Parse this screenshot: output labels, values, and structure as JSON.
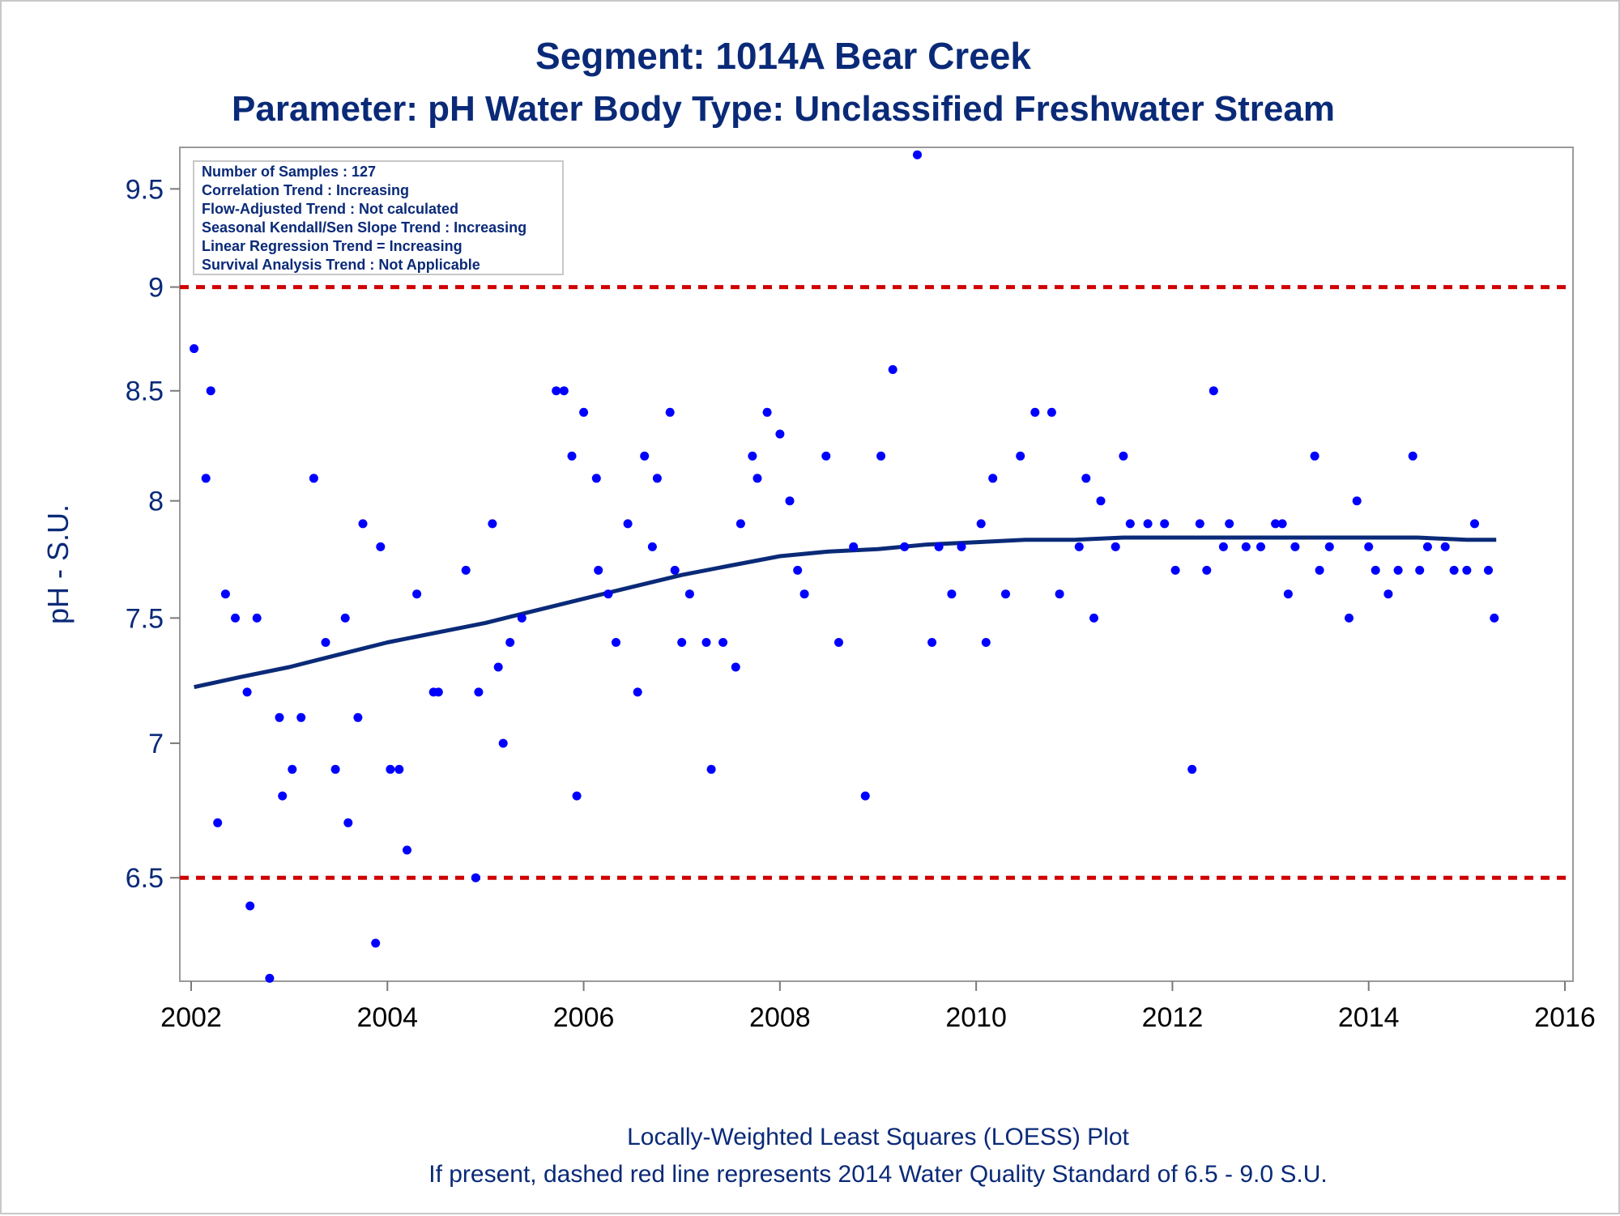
{
  "chart_data": {
    "type": "scatter",
    "title": "Segment: 1014A  Bear Creek",
    "subtitle": "Parameter: pH   Water Body Type: Unclassified Freshwater Stream",
    "ylabel": "pH - S.U.",
    "xlabel": "",
    "xlim": [
      2002,
      2016
    ],
    "ylim": [
      6.14,
      9.72
    ],
    "y_scale": "log",
    "grid": false,
    "x_ticks": [
      2002,
      2004,
      2006,
      2008,
      2010,
      2012,
      2014,
      2016
    ],
    "x_tick_labels": [
      "2002",
      "2004",
      "2006",
      "2008",
      "2010",
      "2012",
      "2014",
      "2016"
    ],
    "y_ticks": [
      6.5,
      7,
      7.5,
      8,
      8.5,
      9,
      9.5
    ],
    "y_tick_labels": [
      "6.5",
      "7",
      "7.5",
      "8",
      "8.5",
      "9",
      "9.5"
    ],
    "info_box": {
      "placement": "top-left",
      "lines": [
        "Number of Samples : 127",
        "Correlation Trend : Increasing",
        "Flow-Adjusted Trend : Not calculated",
        "Seasonal Kendall/Sen Slope Trend : Increasing",
        "Linear Regression Trend = Increasing",
        "Survival Analysis Trend : Not Applicable"
      ]
    },
    "standard_lines": [
      {
        "y": 6.5,
        "style": "dashed",
        "color": "#d00000"
      },
      {
        "y": 9.0,
        "style": "dashed",
        "color": "#d00000"
      }
    ],
    "colors": {
      "points": "#0000ff",
      "loess": "#0a2a78",
      "standard": "#d00000",
      "text": "#0a2a78"
    },
    "points": [
      [
        2002.03,
        8.7
      ],
      [
        2002.15,
        8.1
      ],
      [
        2002.2,
        8.5
      ],
      [
        2002.27,
        6.7
      ],
      [
        2002.35,
        7.6
      ],
      [
        2002.45,
        7.5
      ],
      [
        2002.57,
        7.2
      ],
      [
        2002.6,
        6.4
      ],
      [
        2002.67,
        7.5
      ],
      [
        2002.8,
        6.15
      ],
      [
        2002.9,
        7.1
      ],
      [
        2002.93,
        6.8
      ],
      [
        2003.03,
        6.9
      ],
      [
        2003.12,
        7.1
      ],
      [
        2003.25,
        8.1
      ],
      [
        2003.37,
        7.4
      ],
      [
        2003.47,
        6.9
      ],
      [
        2003.57,
        7.5
      ],
      [
        2003.6,
        6.7
      ],
      [
        2003.7,
        7.1
      ],
      [
        2003.75,
        7.9
      ],
      [
        2003.88,
        6.27
      ],
      [
        2003.93,
        7.8
      ],
      [
        2004.03,
        6.9
      ],
      [
        2004.12,
        6.9
      ],
      [
        2004.2,
        6.6
      ],
      [
        2004.3,
        7.6
      ],
      [
        2004.47,
        7.2
      ],
      [
        2004.52,
        7.2
      ],
      [
        2004.8,
        7.7
      ],
      [
        2004.9,
        6.5
      ],
      [
        2004.93,
        7.2
      ],
      [
        2005.07,
        7.9
      ],
      [
        2005.13,
        7.3
      ],
      [
        2005.18,
        7.0
      ],
      [
        2005.25,
        7.4
      ],
      [
        2005.37,
        7.5
      ],
      [
        2005.72,
        8.5
      ],
      [
        2005.8,
        8.5
      ],
      [
        2005.88,
        8.2
      ],
      [
        2005.93,
        6.8
      ],
      [
        2006.0,
        8.4
      ],
      [
        2006.13,
        8.1
      ],
      [
        2006.15,
        7.7
      ],
      [
        2006.25,
        7.6
      ],
      [
        2006.33,
        7.4
      ],
      [
        2006.45,
        7.9
      ],
      [
        2006.55,
        7.2
      ],
      [
        2006.62,
        8.2
      ],
      [
        2006.7,
        7.8
      ],
      [
        2006.75,
        8.1
      ],
      [
        2006.88,
        8.4
      ],
      [
        2006.93,
        7.7
      ],
      [
        2007.0,
        7.4
      ],
      [
        2007.08,
        7.6
      ],
      [
        2007.25,
        7.4
      ],
      [
        2007.3,
        6.9
      ],
      [
        2007.42,
        7.4
      ],
      [
        2007.55,
        7.3
      ],
      [
        2007.6,
        7.9
      ],
      [
        2007.72,
        8.2
      ],
      [
        2007.77,
        8.1
      ],
      [
        2007.87,
        8.4
      ],
      [
        2008.0,
        8.3
      ],
      [
        2008.1,
        8.0
      ],
      [
        2008.18,
        7.7
      ],
      [
        2008.25,
        7.6
      ],
      [
        2008.47,
        8.2
      ],
      [
        2008.6,
        7.4
      ],
      [
        2008.75,
        7.8
      ],
      [
        2008.87,
        6.8
      ],
      [
        2009.03,
        8.2
      ],
      [
        2009.15,
        8.6
      ],
      [
        2009.27,
        7.8
      ],
      [
        2009.4,
        9.68
      ],
      [
        2009.55,
        7.4
      ],
      [
        2009.62,
        7.8
      ],
      [
        2009.75,
        7.6
      ],
      [
        2009.85,
        7.8
      ],
      [
        2010.05,
        7.9
      ],
      [
        2010.1,
        7.4
      ],
      [
        2010.17,
        8.1
      ],
      [
        2010.3,
        7.6
      ],
      [
        2010.45,
        8.2
      ],
      [
        2010.6,
        8.4
      ],
      [
        2010.77,
        8.4
      ],
      [
        2010.85,
        7.6
      ],
      [
        2011.05,
        7.8
      ],
      [
        2011.12,
        8.1
      ],
      [
        2011.2,
        7.5
      ],
      [
        2011.27,
        8.0
      ],
      [
        2011.42,
        7.8
      ],
      [
        2011.5,
        8.2
      ],
      [
        2011.57,
        7.9
      ],
      [
        2011.75,
        7.9
      ],
      [
        2011.92,
        7.9
      ],
      [
        2012.03,
        7.7
      ],
      [
        2012.2,
        6.9
      ],
      [
        2012.28,
        7.9
      ],
      [
        2012.35,
        7.7
      ],
      [
        2012.42,
        8.5
      ],
      [
        2012.52,
        7.8
      ],
      [
        2012.58,
        7.9
      ],
      [
        2012.75,
        7.8
      ],
      [
        2012.9,
        7.8
      ],
      [
        2013.05,
        7.9
      ],
      [
        2013.12,
        7.9
      ],
      [
        2013.18,
        7.6
      ],
      [
        2013.25,
        7.8
      ],
      [
        2013.45,
        8.2
      ],
      [
        2013.5,
        7.7
      ],
      [
        2013.6,
        7.8
      ],
      [
        2013.8,
        7.5
      ],
      [
        2013.88,
        8.0
      ],
      [
        2014.0,
        7.8
      ],
      [
        2014.07,
        7.7
      ],
      [
        2014.2,
        7.6
      ],
      [
        2014.3,
        7.7
      ],
      [
        2014.45,
        8.2
      ],
      [
        2014.52,
        7.7
      ],
      [
        2014.6,
        7.8
      ],
      [
        2014.78,
        7.8
      ],
      [
        2014.87,
        7.7
      ],
      [
        2015.0,
        7.7
      ],
      [
        2015.08,
        7.9
      ],
      [
        2015.22,
        7.7
      ],
      [
        2015.28,
        7.5
      ]
    ],
    "loess": {
      "name": "",
      "x": [
        2002.03,
        2002.5,
        2003.0,
        2003.5,
        2004.0,
        2004.5,
        2005.0,
        2005.5,
        2006.0,
        2006.5,
        2007.0,
        2007.5,
        2008.0,
        2008.5,
        2009.0,
        2009.5,
        2010.0,
        2010.5,
        2011.0,
        2011.5,
        2012.0,
        2012.5,
        2013.0,
        2013.5,
        2014.0,
        2014.5,
        2015.0,
        2015.3
      ],
      "y": [
        7.22,
        7.26,
        7.3,
        7.35,
        7.4,
        7.44,
        7.48,
        7.53,
        7.58,
        7.63,
        7.68,
        7.72,
        7.76,
        7.78,
        7.79,
        7.81,
        7.82,
        7.83,
        7.83,
        7.84,
        7.84,
        7.84,
        7.84,
        7.84,
        7.84,
        7.84,
        7.83,
        7.83
      ]
    }
  },
  "footer": {
    "line1": "Locally-Weighted Least Squares (LOESS) Plot",
    "line2": "If present, dashed red line represents 2014 Water Quality Standard of 6.5 - 9.0 S.U."
  }
}
